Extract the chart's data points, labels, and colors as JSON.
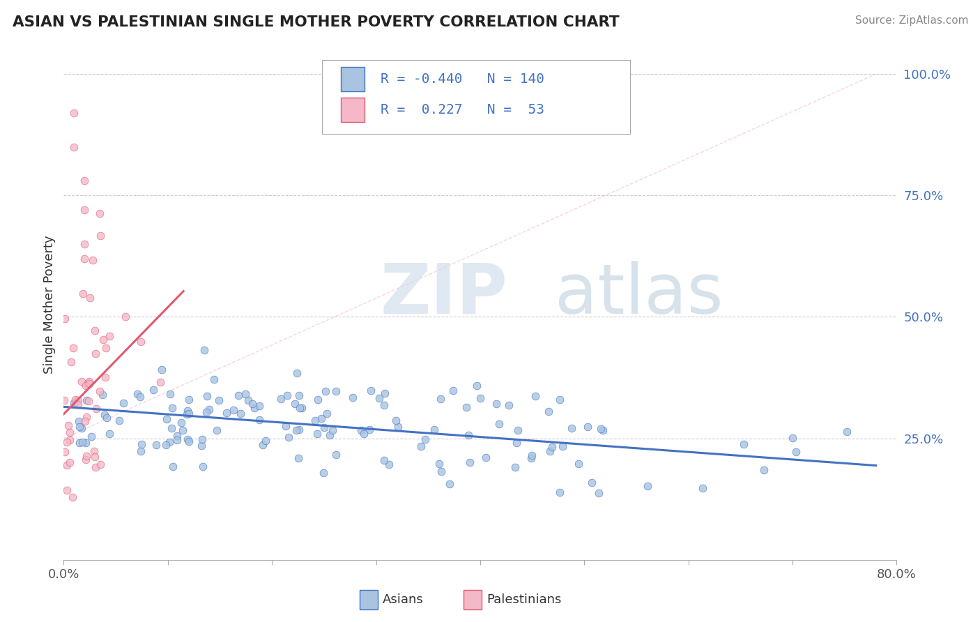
{
  "title": "ASIAN VS PALESTINIAN SINGLE MOTHER POVERTY CORRELATION CHART",
  "source": "Source: ZipAtlas.com",
  "ylabel": "Single Mother Poverty",
  "xlim": [
    0.0,
    0.8
  ],
  "ylim": [
    0.0,
    1.05
  ],
  "x_ticks": [
    0.0,
    0.8
  ],
  "x_tick_labels": [
    "0.0%",
    "80.0%"
  ],
  "y_tick_labels_right": [
    "100.0%",
    "75.0%",
    "50.0%",
    "25.0%"
  ],
  "y_ticks_right": [
    1.0,
    0.75,
    0.5,
    0.25
  ],
  "asian_fill": "#a8c4e0",
  "asian_edge": "#4472c4",
  "pal_fill": "#f4b8c8",
  "pal_edge": "#e05a70",
  "asian_line_color": "#4472c4",
  "pal_line_color": "#e05a70",
  "diag_color": "#f4b8c8",
  "R_asian": -0.44,
  "N_asian": 140,
  "R_pal": 0.227,
  "N_pal": 53,
  "watermark_zip": "ZIP",
  "watermark_atlas": "atlas",
  "grid_color": "#cccccc",
  "bg": "#ffffff",
  "legend_text_color": "#4472c4",
  "legend_R_color": "#c00000",
  "tick_color": "#555555"
}
